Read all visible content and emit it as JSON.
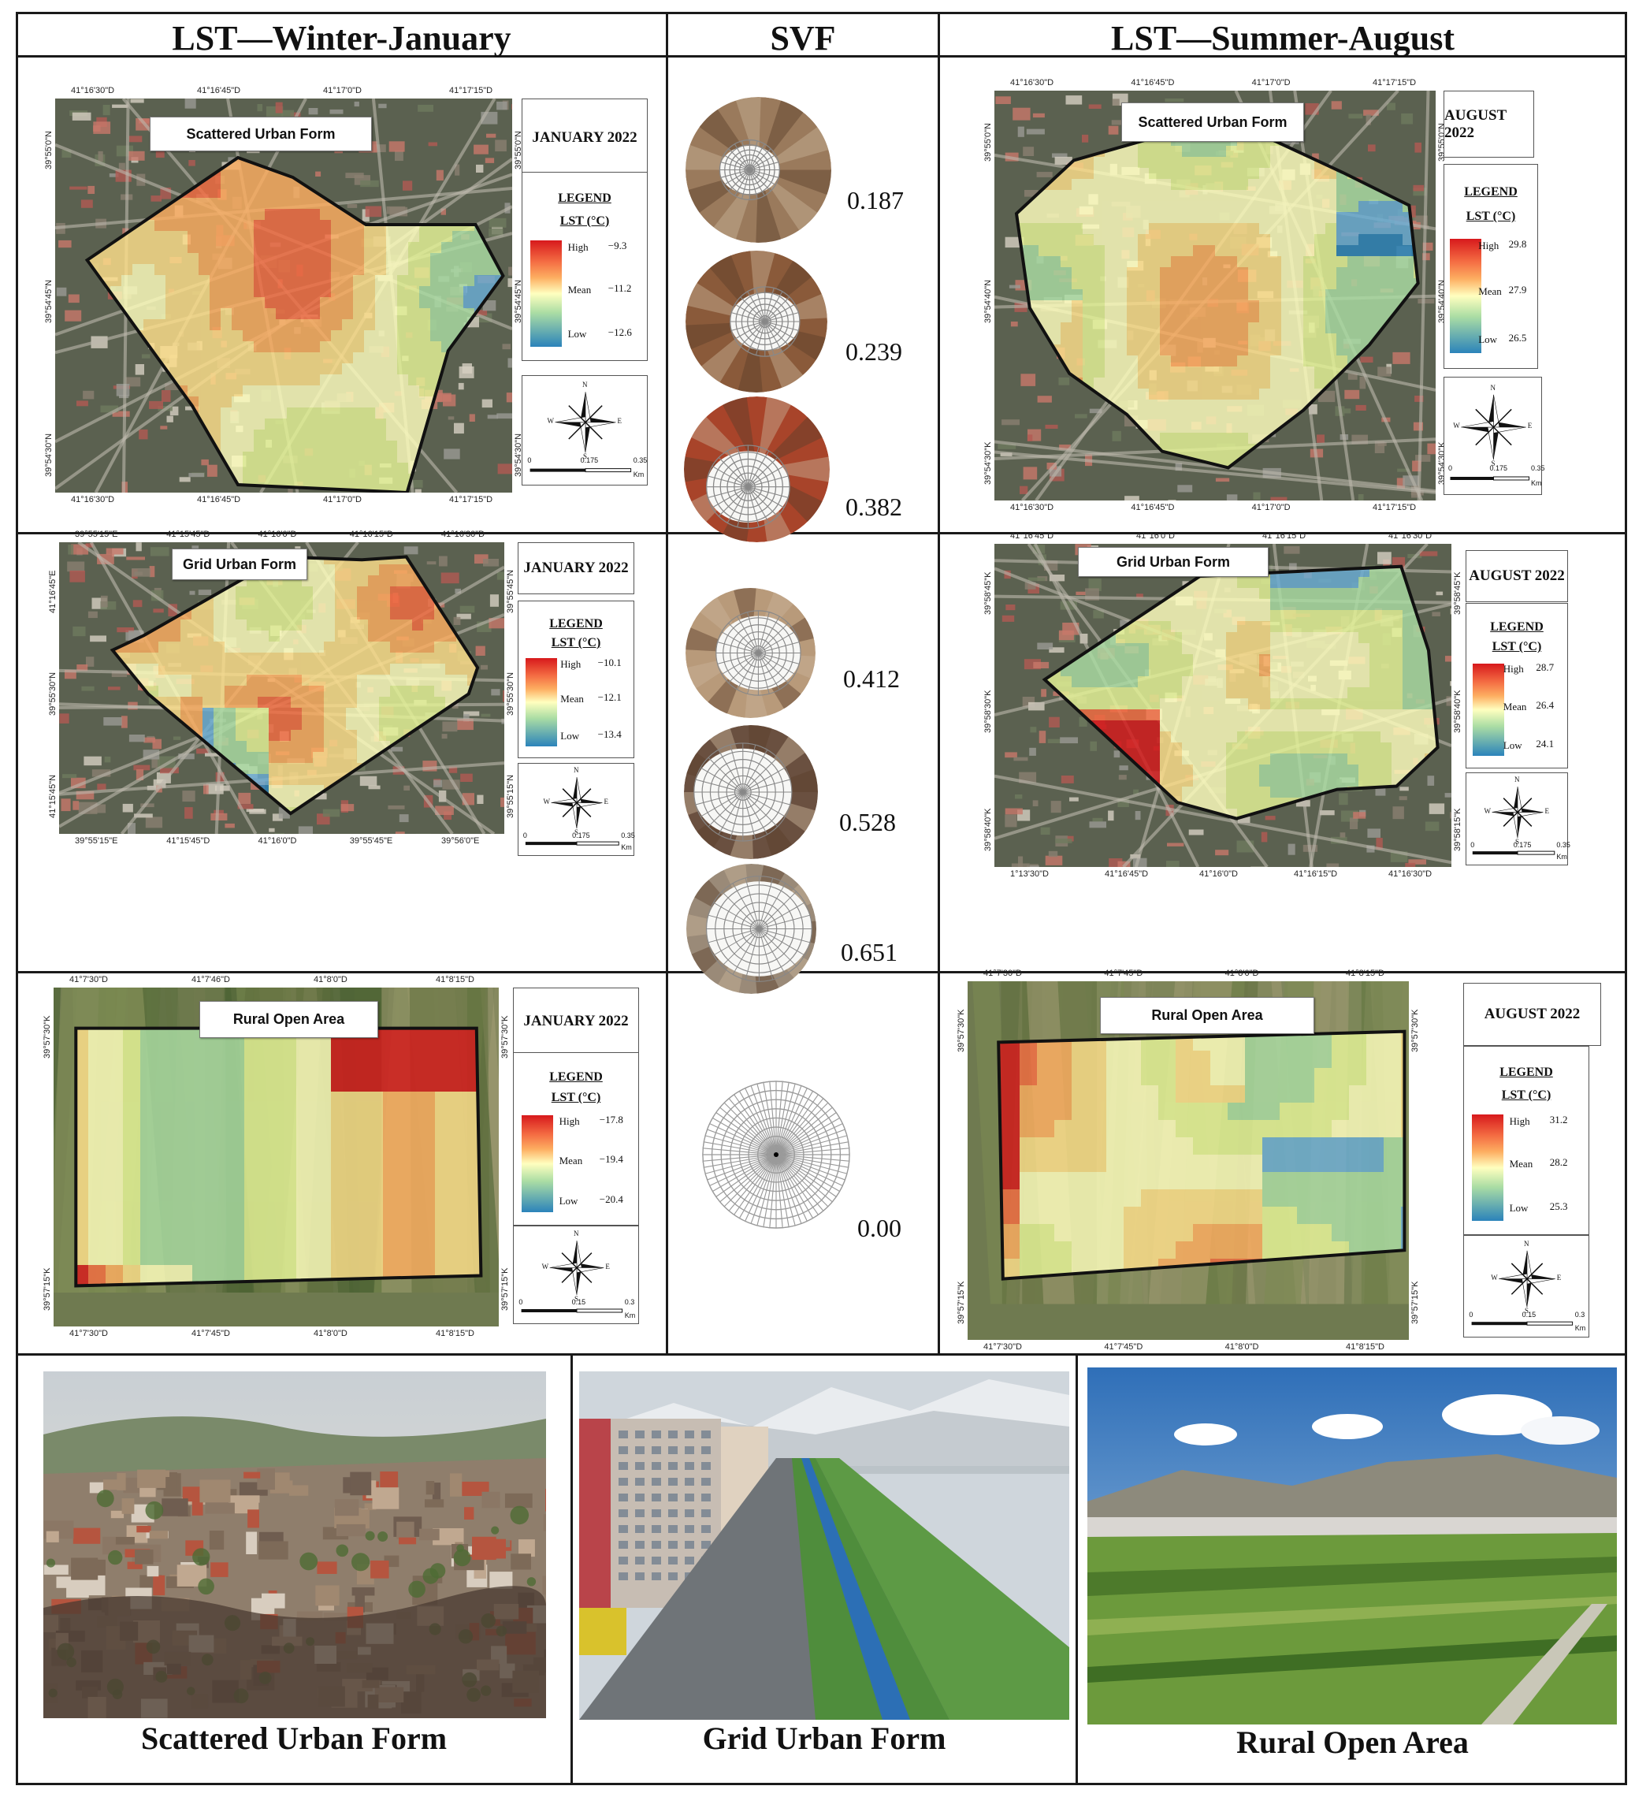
{
  "headers": {
    "winter": "LST—Winter-January",
    "svf": "SVF",
    "summer": "LST—Summer-August"
  },
  "rows": [
    {
      "winter": {
        "area_label": "Scattered Urban Form",
        "month": "JANUARY 2022",
        "legend_title": "LEGEND",
        "legend_unit": "LST (°C)",
        "high_label": "High",
        "high_value": "−9.3",
        "mean_label": "Mean",
        "mean_value": "−11.2",
        "low_label": "Low",
        "low_value": "−12.6",
        "scale": [
          "0",
          "0.175",
          "0.35"
        ],
        "scale_unit": "Km",
        "top_coords": [
          "41°16'30\"D",
          "41°16'45\"D",
          "41°17'0\"D",
          "41°17'15\"D"
        ],
        "bottom_coords": [
          "41°16'30\"D",
          "41°16'45\"D",
          "41°17'0\"D",
          "41°17'15\"D"
        ],
        "left_coords": [
          "39°55'0\"N",
          "39°54'45\"N",
          "39°54'30\"N"
        ],
        "right_coords": [
          "39°55'0\"N",
          "39°54'45\"N",
          "39°54'30\"N"
        ]
      },
      "summer": {
        "area_label": "Scattered Urban Form",
        "month": "AUGUST 2022",
        "legend_title": "LEGEND",
        "legend_unit": "LST (°C)",
        "high_label": "High",
        "high_value": "29.8",
        "mean_label": "Mean",
        "mean_value": "27.9",
        "low_label": "Low",
        "low_value": "26.5",
        "scale": [
          "0",
          "0.175",
          "0.35"
        ],
        "scale_unit": "Km",
        "top_coords": [
          "41°16'30\"D",
          "41°16'45\"D",
          "41°17'0\"D",
          "41°17'15\"D"
        ],
        "bottom_coords": [
          "41°16'30\"D",
          "41°16'45\"D",
          "41°17'0\"D",
          "41°17'15\"D"
        ],
        "left_coords": [
          "39°55'0\"N",
          "39°54'40\"N",
          "39°54'30\"K"
        ],
        "right_coords": [
          "39°55'0\"N",
          "39°54'40\"N",
          "39°54'30\"K"
        ]
      },
      "svf": [
        "0.187",
        "0.239",
        "0.382"
      ]
    },
    {
      "winter": {
        "area_label": "Grid Urban Form",
        "month": "JANUARY 2022",
        "legend_title": "LEGEND",
        "legend_unit": "LST (°C)",
        "high_label": "High",
        "high_value": "−10.1",
        "mean_label": "Mean",
        "mean_value": "−12.1",
        "low_label": "Low",
        "low_value": "−13.4",
        "scale": [
          "0",
          "0.175",
          "0.35"
        ],
        "scale_unit": "Km",
        "top_coords": [
          "39°55'15\"E",
          "41°15'45\"D",
          "41°16'0\"D",
          "41°16'15\"D",
          "41°16'30\"D"
        ],
        "bottom_coords": [
          "39°55'15\"E",
          "41°15'45\"D",
          "41°16'0\"D",
          "39°55'45\"E",
          "39°56'0\"E"
        ],
        "left_coords": [
          "41°16'45\"E",
          "39°55'30\"N",
          "41°15'45\"N"
        ],
        "right_coords": [
          "39°55'45\"N",
          "39°55'30\"N",
          "39°55'15\"N"
        ]
      },
      "summer": {
        "area_label": "Grid Urban Form",
        "month": "AUGUST 2022",
        "legend_title": "LEGEND",
        "legend_unit": "LST (°C)",
        "high_label": "High",
        "high_value": "28.7",
        "mean_label": "Mean",
        "mean_value": "26.4",
        "low_label": "Low",
        "low_value": "24.1",
        "scale": [
          "0",
          "0.175",
          "0.35"
        ],
        "scale_unit": "Km",
        "top_coords": [
          "41°16'45\"D",
          "41°16'0\"D",
          "41°16'15\"D",
          "41°16'30\"D"
        ],
        "bottom_coords": [
          "1°13'30\"D",
          "41°16'45\"D",
          "41°16'0\"D",
          "41°16'15\"D",
          "41°16'30\"D"
        ],
        "left_coords": [
          "39°58'45\"K",
          "39°58'30\"K",
          "39°58'40\"K"
        ],
        "right_coords": [
          "39°58'45\"K",
          "39°58'40\"K",
          "39°58'15\"K"
        ]
      },
      "svf": [
        "0.412",
        "0.528",
        "0.651"
      ]
    },
    {
      "winter": {
        "area_label": "Rural Open Area",
        "month": "JANUARY 2022",
        "legend_title": "LEGEND",
        "legend_unit": "LST (°C)",
        "high_label": "High",
        "high_value": "−17.8",
        "mean_label": "Mean",
        "mean_value": "−19.4",
        "low_label": "Low",
        "low_value": "−20.4",
        "scale": [
          "0",
          "0.15",
          "0.3"
        ],
        "scale_unit": "Km",
        "top_coords": [
          "41°7'30\"D",
          "41°7'46\"D",
          "41°8'0\"D",
          "41°8'15\"D"
        ],
        "bottom_coords": [
          "41°7'30\"D",
          "41°7'45\"D",
          "41°8'0\"D",
          "41°8'15\"D"
        ],
        "left_coords": [
          "39°57'30\"K",
          "39°57'15\"K"
        ],
        "right_coords": [
          "39°57'30\"K",
          "39°57'15\"K"
        ]
      },
      "summer": {
        "area_label": "Rural Open Area",
        "month": "AUGUST 2022",
        "legend_title": "LEGEND",
        "legend_unit": "LST (°C)",
        "high_label": "High",
        "high_value": "31.2",
        "mean_label": "Mean",
        "mean_value": "28.2",
        "low_label": "Low",
        "low_value": "25.3",
        "scale": [
          "0",
          "0.15",
          "0.3"
        ],
        "scale_unit": "Km",
        "top_coords": [
          "41°7'30\"D",
          "41°7'45\"D",
          "41°8'0\"D",
          "41°8'15\"D"
        ],
        "bottom_coords": [
          "41°7'30\"D",
          "41°7'45\"D",
          "41°8'0\"D",
          "41°8'15\"D"
        ],
        "left_coords": [
          "39°57'30\"K",
          "39°57'15\"K"
        ],
        "right_coords": [
          "39°57'30\"K",
          "39°57'15\"K"
        ]
      },
      "svf": [
        "0.00"
      ]
    }
  ],
  "compass": {
    "n": "N",
    "s": "S",
    "e": "E",
    "w": "W"
  },
  "photos": [
    "Scattered Urban Form",
    "Grid Urban Form",
    "Rural Open Area"
  ],
  "colors": {
    "high": "#d7191c",
    "mean": "#ffffbf",
    "low": "#2b83ba",
    "border": "#1a1a1a"
  }
}
